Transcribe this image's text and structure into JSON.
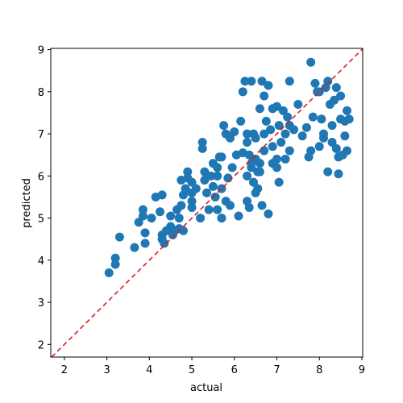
{
  "chart_data": {
    "type": "scatter",
    "xlabel": "actual",
    "ylabel": "predicted",
    "xlim": [
      1.68,
      9.02
    ],
    "ylim": [
      1.7,
      9.03
    ],
    "xticks": [
      2,
      3,
      4,
      5,
      6,
      7,
      8,
      9
    ],
    "yticks": [
      2,
      3,
      4,
      5,
      6,
      7,
      8,
      9
    ],
    "color": "#1f77b4",
    "diagonal_color": "#e31a1c",
    "x": [
      3.05,
      3.2,
      3.2,
      3.3,
      3.65,
      3.75,
      3.85,
      3.85,
      3.9,
      3.9,
      4.05,
      4.15,
      4.3,
      4.25,
      4.3,
      4.3,
      4.35,
      4.4,
      4.5,
      4.5,
      4.55,
      4.6,
      4.65,
      4.7,
      4.7,
      4.75,
      4.8,
      4.8,
      4.75,
      4.85,
      4.9,
      4.9,
      5.0,
      5.0,
      5.0,
      5.0,
      5.1,
      5.2,
      5.25,
      5.25,
      5.3,
      5.3,
      5.35,
      5.4,
      5.45,
      5.5,
      5.5,
      5.6,
      5.6,
      5.6,
      5.65,
      5.7,
      5.7,
      5.7,
      5.75,
      5.8,
      5.8,
      5.85,
      5.9,
      5.9,
      5.95,
      6.0,
      6.05,
      6.1,
      6.15,
      6.2,
      6.25,
      6.3,
      6.3,
      6.35,
      6.35,
      6.4,
      6.4,
      6.45,
      6.45,
      6.5,
      6.5,
      6.55,
      6.6,
      6.6,
      6.65,
      6.65,
      6.7,
      6.7,
      6.75,
      6.8,
      6.8,
      6.85,
      6.9,
      6.9,
      7.0,
      7.0,
      7.05,
      7.05,
      7.1,
      7.15,
      7.2,
      7.25,
      7.3,
      7.3,
      7.3,
      7.4,
      7.5,
      7.6,
      7.7,
      7.75,
      7.8,
      7.85,
      7.9,
      7.95,
      8.0,
      8.05,
      8.1,
      8.15,
      8.2,
      8.2,
      8.25,
      8.3,
      8.35,
      8.4,
      8.4,
      8.45,
      8.45,
      8.5,
      8.5,
      8.55,
      8.6,
      8.6,
      8.65,
      8.65,
      8.7,
      6.3,
      6.6,
      6.4,
      6.5,
      6.2,
      7.2,
      7.0,
      6.7,
      5.55,
      6.55,
      6.3,
      6.9,
      8.1,
      7.8,
      8.0,
      8.3
    ],
    "y": [
      3.7,
      3.9,
      4.05,
      4.55,
      4.3,
      4.9,
      5.05,
      5.2,
      4.4,
      4.65,
      5.0,
      5.5,
      5.55,
      5.15,
      4.6,
      4.5,
      4.4,
      4.7,
      5.05,
      4.8,
      4.6,
      4.7,
      5.2,
      5.0,
      4.75,
      5.9,
      5.55,
      4.7,
      5.3,
      5.7,
      6.1,
      5.95,
      5.85,
      5.6,
      5.25,
      5.4,
      5.7,
      5.0,
      6.8,
      6.65,
      5.9,
      6.1,
      5.6,
      5.2,
      6.0,
      6.3,
      5.75,
      6.2,
      6.0,
      5.2,
      6.45,
      5.0,
      6.45,
      5.7,
      7.2,
      7.0,
      5.4,
      5.95,
      6.9,
      5.3,
      6.2,
      7.05,
      6.5,
      5.05,
      7.3,
      8.0,
      8.25,
      7.0,
      6.0,
      5.25,
      6.5,
      8.25,
      6.2,
      7.0,
      5.85,
      6.4,
      5.6,
      6.1,
      7.6,
      6.3,
      8.25,
      5.3,
      7.9,
      6.6,
      7.3,
      8.15,
      5.1,
      7.1,
      6.7,
      6.3,
      7.65,
      6.2,
      5.85,
      7.2,
      6.8,
      7.55,
      7.0,
      7.4,
      8.25,
      7.2,
      6.6,
      7.1,
      7.7,
      6.95,
      7.15,
      6.45,
      8.7,
      7.4,
      8.2,
      8.0,
      6.7,
      7.35,
      6.9,
      8.1,
      8.25,
      6.1,
      7.7,
      7.2,
      7.8,
      8.1,
      6.65,
      6.05,
      6.45,
      7.9,
      7.35,
      6.5,
      7.3,
      6.95,
      7.55,
      6.6,
      7.35,
      6.8,
      6.1,
      6.3,
      6.9,
      6.55,
      6.4,
      6.4,
      7.0,
      5.5,
      5.7,
      5.4,
      7.6,
      7.0,
      6.6,
      8.0,
      6.8
    ]
  }
}
